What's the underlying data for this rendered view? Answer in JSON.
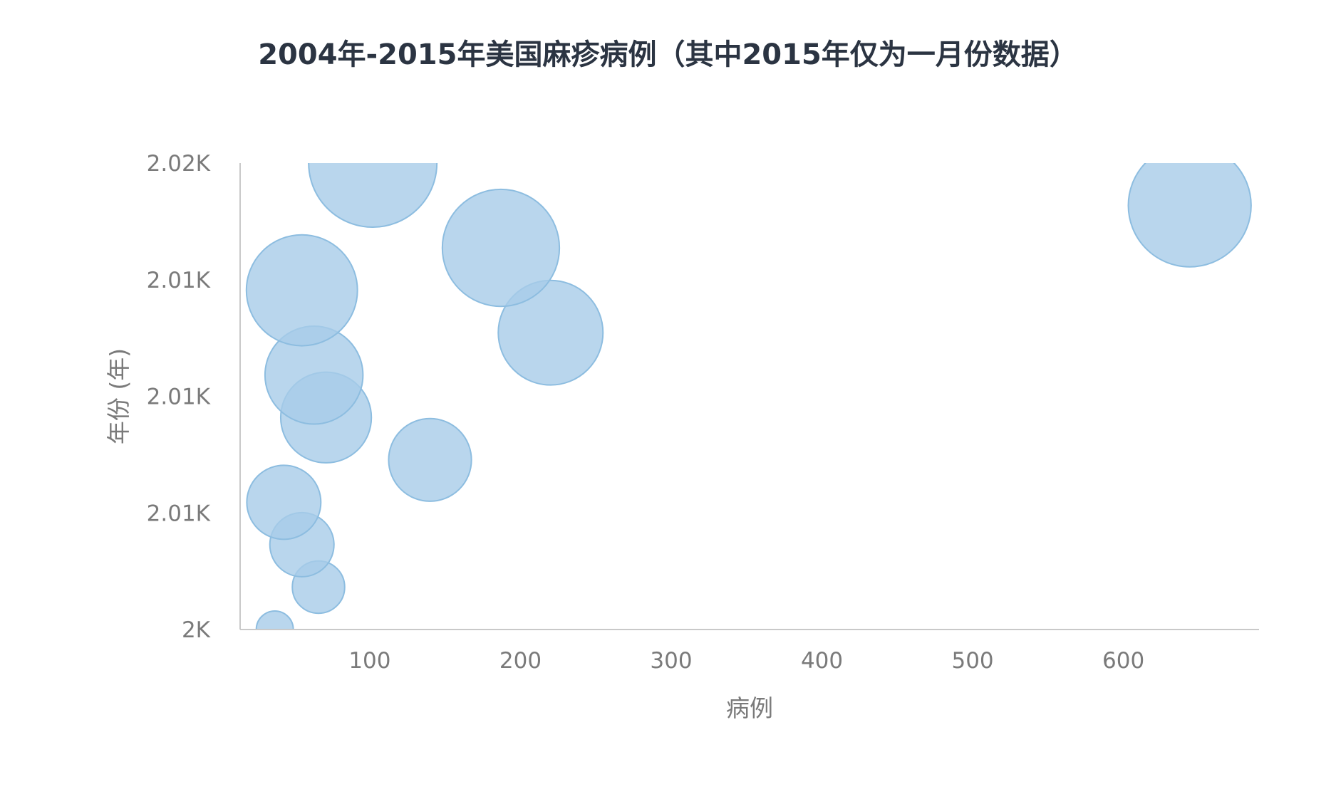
{
  "chart_data": {
    "type": "scatter",
    "title": "2004年-2015年美国麻疹病例（其中2015年仅为一月份数据）",
    "xlabel": "病例",
    "ylabel": "年份 (年)",
    "xlim": [
      14,
      690
    ],
    "ylim": [
      2004,
      2015
    ],
    "x_ticks": [
      {
        "value": 100,
        "label": "100"
      },
      {
        "value": 200,
        "label": "200"
      },
      {
        "value": 300,
        "label": "300"
      },
      {
        "value": 400,
        "label": "400"
      },
      {
        "value": 500,
        "label": "500"
      },
      {
        "value": 600,
        "label": "600"
      }
    ],
    "y_ticks": [
      {
        "value": 2004,
        "label": "2K"
      },
      {
        "value": 2006.75,
        "label": "2.01K"
      },
      {
        "value": 2009.5,
        "label": "2.01K"
      },
      {
        "value": 2012.25,
        "label": "2.01K"
      },
      {
        "value": 2015,
        "label": "2.02K"
      }
    ],
    "grid": false,
    "legend": "none",
    "bubble_color": "#a7cce8",
    "bubble_stroke": "#8dbde0",
    "points": [
      {
        "year": 2004,
        "cases": 37,
        "size": 1
      },
      {
        "year": 2005,
        "cases": 66,
        "size": 2
      },
      {
        "year": 2006,
        "cases": 55,
        "size": 3
      },
      {
        "year": 2007,
        "cases": 43,
        "size": 4
      },
      {
        "year": 2008,
        "cases": 140,
        "size": 5
      },
      {
        "year": 2009,
        "cases": 71,
        "size": 6
      },
      {
        "year": 2010,
        "cases": 63,
        "size": 7
      },
      {
        "year": 2011,
        "cases": 220,
        "size": 8
      },
      {
        "year": 2012,
        "cases": 55,
        "size": 9
      },
      {
        "year": 2013,
        "cases": 187,
        "size": 10
      },
      {
        "year": 2014,
        "cases": 644,
        "size": 11
      },
      {
        "year": 2015,
        "cases": 102,
        "size": 12
      }
    ]
  }
}
